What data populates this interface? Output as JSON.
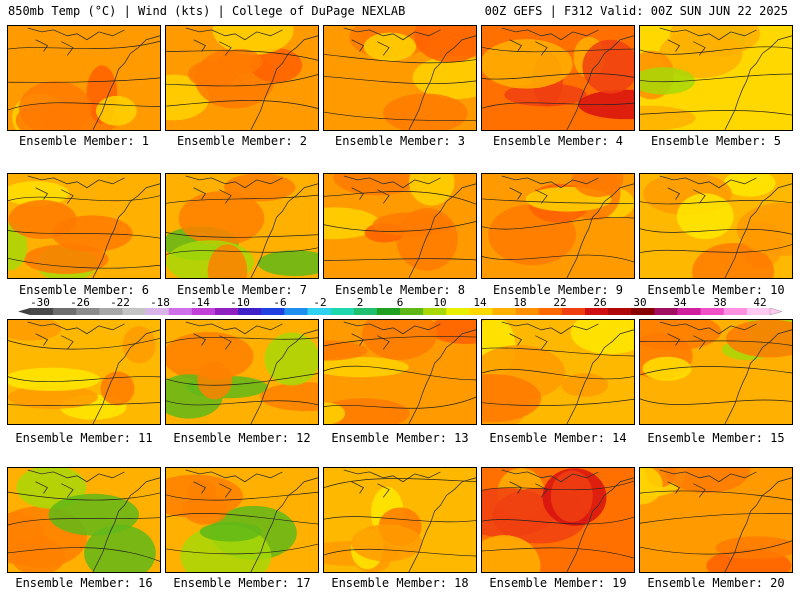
{
  "header": {
    "left": "850mb Temp (°C) | Wind (kts) | College of DuPage NEXLAB",
    "right": "00Z GEFS | F312 Valid: 00Z SUN JUN 22 2025"
  },
  "colorbar": {
    "labels": [
      "-30",
      "-26",
      "-22",
      "-18",
      "-14",
      "-10",
      "-6",
      "-2",
      "2",
      "6",
      "10",
      "14",
      "18",
      "22",
      "26",
      "30",
      "34",
      "38",
      "42"
    ],
    "colors": [
      "#4a4a4a",
      "#6e6e6e",
      "#8c8c8c",
      "#a8a8a8",
      "#c4c4c4",
      "#d8b4e8",
      "#d070e8",
      "#c040d8",
      "#9020c0",
      "#4020c8",
      "#2040e0",
      "#2090f0",
      "#30d0f0",
      "#20d8b0",
      "#20c070",
      "#20a020",
      "#60b818",
      "#a8d808",
      "#e8f000",
      "#ffd800",
      "#ffb000",
      "#ff9000",
      "#ff6a00",
      "#f04010",
      "#d01010",
      "#b00808",
      "#880000",
      "#a01060",
      "#d020a0",
      "#f050c8",
      "#ff90e0",
      "#ffc8f0"
    ]
  },
  "members": [
    {
      "label": "Ensemble Member: 1",
      "palette": "warm"
    },
    {
      "label": "Ensemble Member: 2",
      "palette": "warm"
    },
    {
      "label": "Ensemble Member: 3",
      "palette": "warm"
    },
    {
      "label": "Ensemble Member: 4",
      "palette": "hot"
    },
    {
      "label": "Ensemble Member: 5",
      "palette": "cool"
    },
    {
      "label": "Ensemble Member: 6",
      "palette": "mix"
    },
    {
      "label": "Ensemble Member: 7",
      "palette": "mixgreen"
    },
    {
      "label": "Ensemble Member: 8",
      "palette": "warm"
    },
    {
      "label": "Ensemble Member: 9",
      "palette": "warm"
    },
    {
      "label": "Ensemble Member: 10",
      "palette": "mild"
    },
    {
      "label": "Ensemble Member: 11",
      "palette": "mild"
    },
    {
      "label": "Ensemble Member: 12",
      "palette": "mixgreen"
    },
    {
      "label": "Ensemble Member: 13",
      "palette": "warm"
    },
    {
      "label": "Ensemble Member: 14",
      "palette": "mild"
    },
    {
      "label": "Ensemble Member: 15",
      "palette": "mix"
    },
    {
      "label": "Ensemble Member: 16",
      "palette": "mixgreen"
    },
    {
      "label": "Ensemble Member: 17",
      "palette": "mixgreen"
    },
    {
      "label": "Ensemble Member: 18",
      "palette": "mild"
    },
    {
      "label": "Ensemble Member: 19",
      "palette": "hot"
    },
    {
      "label": "Ensemble Member: 20",
      "palette": "warm"
    }
  ]
}
